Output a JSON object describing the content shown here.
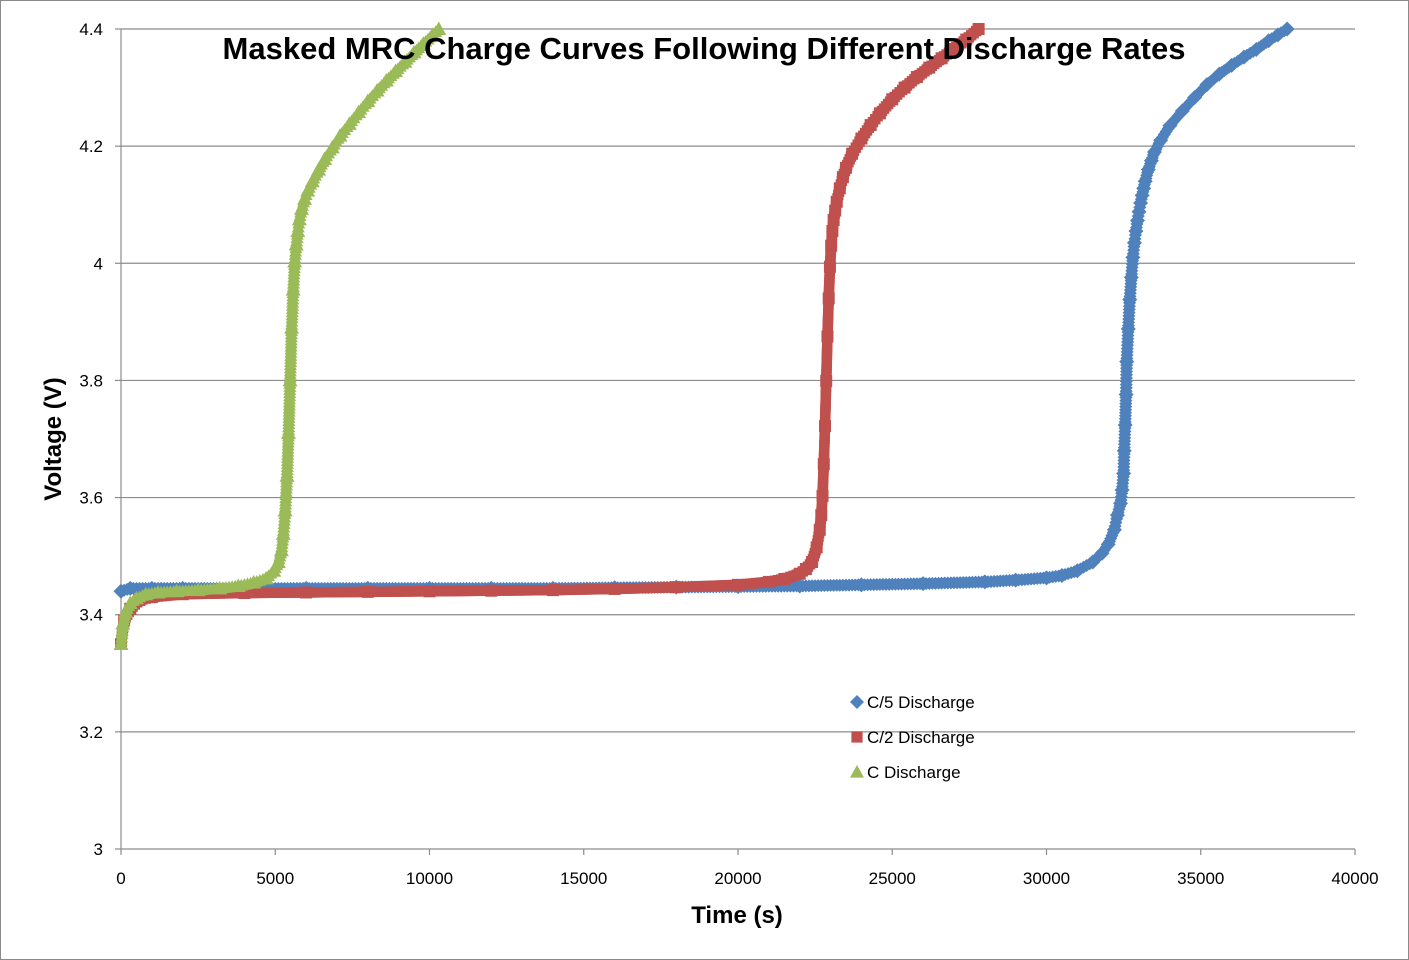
{
  "chart_data": {
    "type": "scatter",
    "title": "Masked MRC Charge Curves Following Different Discharge Rates",
    "xlabel": "Time (s)",
    "ylabel": "Voltage (V)",
    "xlim": [
      0,
      40000
    ],
    "ylim": [
      3,
      4.4
    ],
    "x_ticks": [
      "0",
      "5000",
      "10000",
      "15000",
      "20000",
      "25000",
      "30000",
      "35000",
      "40000"
    ],
    "y_ticks": [
      "3",
      "3.2",
      "3.4",
      "3.6",
      "3.8",
      "4",
      "4.2",
      "4.4"
    ],
    "grid": "horizontal",
    "legend_position": "lower-right",
    "series": [
      {
        "name": "C/5 Discharge",
        "marker": "diamond",
        "color": "#4f81bd",
        "x": [
          0,
          300,
          1000,
          2000,
          4000,
          6000,
          8000,
          10000,
          12000,
          14000,
          16000,
          18000,
          20000,
          22000,
          24000,
          26000,
          28000,
          29000,
          30000,
          30500,
          31000,
          31500,
          31800,
          32000,
          32200,
          32300,
          32400,
          32450,
          32500,
          32520,
          32550,
          32580,
          32600,
          32650,
          32700,
          32750,
          32800,
          32850,
          32900,
          32950,
          33000,
          33050,
          33100,
          33150,
          33200,
          33300,
          33400,
          33500,
          33700,
          34000,
          34400,
          34800,
          35200,
          35600,
          36000,
          36400,
          36800,
          37200,
          37500,
          37800
        ],
        "y": [
          3.44,
          3.445,
          3.445,
          3.445,
          3.445,
          3.445,
          3.445,
          3.445,
          3.445,
          3.445,
          3.446,
          3.447,
          3.448,
          3.449,
          3.451,
          3.453,
          3.456,
          3.459,
          3.463,
          3.467,
          3.475,
          3.49,
          3.505,
          3.52,
          3.545,
          3.57,
          3.59,
          3.613,
          3.641,
          3.68,
          3.724,
          3.776,
          3.832,
          3.888,
          3.938,
          3.976,
          4.01,
          4.035,
          4.055,
          4.073,
          4.088,
          4.103,
          4.116,
          4.128,
          4.14,
          4.16,
          4.175,
          4.19,
          4.21,
          4.235,
          4.26,
          4.283,
          4.305,
          4.323,
          4.338,
          4.352,
          4.365,
          4.38,
          4.39,
          4.4
        ]
      },
      {
        "name": "C/2 Discharge",
        "marker": "square",
        "color": "#c0504d",
        "x": [
          0,
          100,
          300,
          600,
          1000,
          2000,
          4000,
          6000,
          8000,
          10000,
          12000,
          14000,
          16000,
          18000,
          20000,
          21000,
          21500,
          22000,
          22200,
          22400,
          22550,
          22650,
          22700,
          22740,
          22780,
          22820,
          22860,
          22900,
          22940,
          22980,
          23020,
          23060,
          23100,
          23150,
          23200,
          23300,
          23400,
          23500,
          23700,
          24000,
          24300,
          24600,
          25000,
          25400,
          25800,
          26200,
          26600,
          27000,
          27400,
          27800
        ],
        "y": [
          3.35,
          3.39,
          3.41,
          3.425,
          3.43,
          3.435,
          3.437,
          3.438,
          3.439,
          3.44,
          3.441,
          3.442,
          3.444,
          3.447,
          3.451,
          3.456,
          3.461,
          3.47,
          3.478,
          3.49,
          3.515,
          3.545,
          3.57,
          3.603,
          3.657,
          3.722,
          3.799,
          3.875,
          3.94,
          3.994,
          4.03,
          4.055,
          4.074,
          4.09,
          4.105,
          4.128,
          4.147,
          4.163,
          4.187,
          4.213,
          4.236,
          4.256,
          4.28,
          4.3,
          4.318,
          4.334,
          4.35,
          4.366,
          4.382,
          4.4
        ]
      },
      {
        "name": "C Discharge",
        "marker": "triangle",
        "color": "#9bbb59",
        "x": [
          0,
          60,
          150,
          300,
          500,
          800,
          1200,
          1800,
          2500,
          3200,
          3800,
          4300,
          4700,
          4950,
          5100,
          5200,
          5260,
          5320,
          5380,
          5430,
          5480,
          5530,
          5580,
          5630,
          5680,
          5730,
          5780,
          5850,
          5950,
          6050,
          6200,
          6400,
          6600,
          6850,
          7100,
          7400,
          7700,
          8000,
          8300,
          8600,
          8900,
          9200,
          9500,
          9800,
          10100,
          10300
        ],
        "y": [
          3.35,
          3.385,
          3.405,
          3.42,
          3.428,
          3.435,
          3.438,
          3.44,
          3.442,
          3.445,
          3.449,
          3.455,
          3.462,
          3.475,
          3.49,
          3.51,
          3.538,
          3.578,
          3.637,
          3.71,
          3.8,
          3.89,
          3.955,
          4.003,
          4.032,
          4.055,
          4.075,
          4.093,
          4.11,
          4.124,
          4.14,
          4.16,
          4.178,
          4.198,
          4.218,
          4.238,
          4.258,
          4.277,
          4.295,
          4.312,
          4.328,
          4.344,
          4.36,
          4.375,
          4.39,
          4.4
        ]
      }
    ]
  }
}
